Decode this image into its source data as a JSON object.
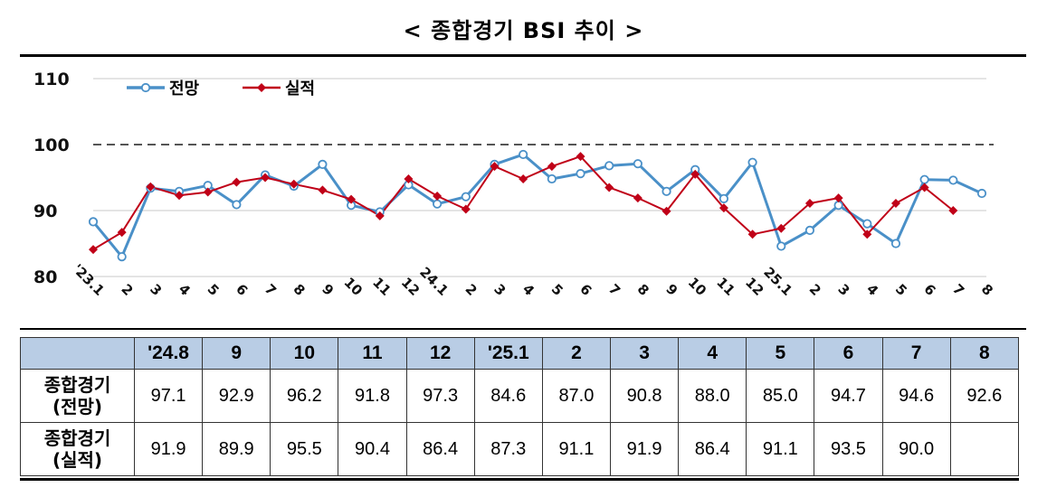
{
  "title": "< 종합경기 BSI 추이 >",
  "colors": {
    "forecast": "#4a90c8",
    "actual": "#c00018",
    "header_bg": "#b9cde5"
  },
  "chart_data": {
    "type": "line",
    "categories": [
      "'23.1",
      "2",
      "3",
      "4",
      "5",
      "6",
      "7",
      "8",
      "9",
      "10",
      "11",
      "12",
      "24.1",
      "2",
      "3",
      "4",
      "5",
      "6",
      "7",
      "8",
      "9",
      "10",
      "11",
      "12",
      "25.1",
      "2",
      "3",
      "4",
      "5",
      "6",
      "7",
      "8"
    ],
    "series": [
      {
        "name": "전망",
        "marker": "circle",
        "values": [
          88.3,
          83.0,
          93.4,
          92.9,
          93.8,
          90.9,
          95.4,
          93.7,
          97.0,
          90.8,
          89.8,
          93.9,
          91.0,
          92.1,
          97.0,
          98.5,
          94.8,
          95.6,
          96.8,
          97.1,
          92.9,
          96.2,
          91.8,
          97.3,
          84.6,
          87.0,
          90.8,
          88.0,
          85.0,
          94.7,
          94.6,
          92.6
        ]
      },
      {
        "name": "실적",
        "marker": "diamond",
        "values": [
          84.1,
          86.7,
          93.6,
          92.3,
          92.8,
          94.3,
          95.0,
          94.0,
          93.1,
          91.7,
          89.2,
          94.8,
          92.2,
          90.2,
          96.7,
          94.8,
          96.7,
          98.2,
          93.5,
          91.9,
          89.9,
          95.5,
          90.4,
          86.4,
          87.3,
          91.1,
          91.9,
          86.4,
          91.1,
          93.5,
          90.0,
          null
        ]
      }
    ],
    "yticks": [
      80,
      90,
      100,
      110
    ],
    "ylim": [
      80,
      110
    ],
    "reference_line": 100,
    "grid": true,
    "legend": "top-left"
  },
  "table": {
    "headers": [
      "'24.8",
      "9",
      "10",
      "11",
      "12",
      "'25.1",
      "2",
      "3",
      "4",
      "5",
      "6",
      "7",
      "8"
    ],
    "rows": [
      {
        "label_line1": "종합경기",
        "label_line2": "(전망)",
        "values": [
          "97.1",
          "92.9",
          "96.2",
          "91.8",
          "97.3",
          "84.6",
          "87.0",
          "90.8",
          "88.0",
          "85.0",
          "94.7",
          "94.6",
          "92.6"
        ]
      },
      {
        "label_line1": "종합경기",
        "label_line2": "(실적)",
        "values": [
          "91.9",
          "89.9",
          "95.5",
          "90.4",
          "86.4",
          "87.3",
          "91.1",
          "91.9",
          "86.4",
          "91.1",
          "93.5",
          "90.0",
          ""
        ]
      }
    ]
  }
}
